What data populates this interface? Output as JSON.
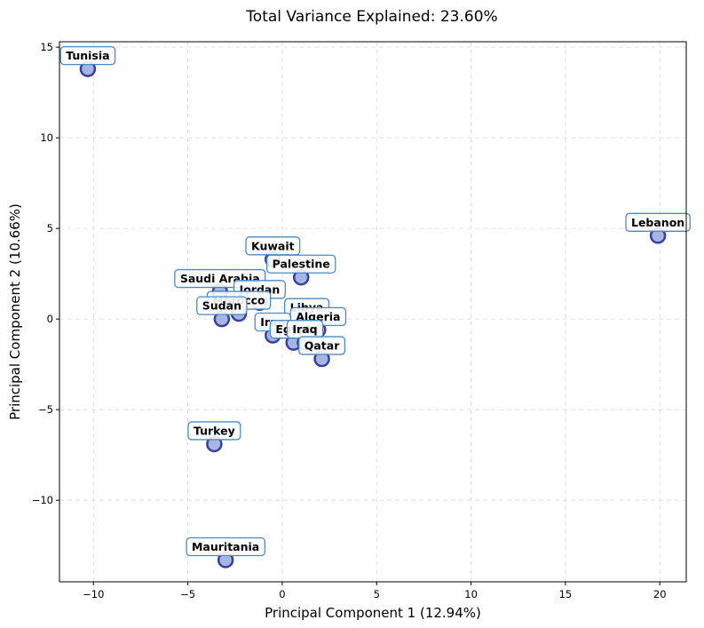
{
  "chart_data": {
    "type": "scatter",
    "title": "Total Variance Explained: 23.60%",
    "xlabel": "Principal Component 1 (12.94%)",
    "ylabel": "Principal Component 2 (10.66%)",
    "xlim": [
      -11.8,
      21.4
    ],
    "ylim": [
      -14.5,
      15.3
    ],
    "xticks": [
      -10,
      -5,
      0,
      5,
      10,
      15,
      20
    ],
    "yticks": [
      -10,
      -5,
      0,
      5,
      10,
      15
    ],
    "grid": true,
    "marker_color": "#9aaede",
    "marker_edge_color": "#3a3fa0",
    "label_border_color": "#4a8ac4",
    "points": [
      {
        "name": "Tunisia",
        "x": -10.3,
        "y": 13.8
      },
      {
        "name": "Lebanon",
        "x": 19.9,
        "y": 4.6
      },
      {
        "name": "Kuwait",
        "x": -0.5,
        "y": 3.3
      },
      {
        "name": "Palestine",
        "x": 1.0,
        "y": 2.3
      },
      {
        "name": "Saudi Arabia",
        "x": -3.3,
        "y": 1.5
      },
      {
        "name": "Jordan",
        "x": -1.2,
        "y": 0.9
      },
      {
        "name": "Morocco",
        "x": -2.3,
        "y": 0.3
      },
      {
        "name": "Sudan",
        "x": -3.2,
        "y": 0.0
      },
      {
        "name": "Libya",
        "x": 1.3,
        "y": -0.1
      },
      {
        "name": "Algeria",
        "x": 1.9,
        "y": -0.6
      },
      {
        "name": "Iran",
        "x": -0.5,
        "y": -0.9
      },
      {
        "name": "Egypt",
        "x": 0.6,
        "y": -1.3
      },
      {
        "name": "Iraq",
        "x": 1.2,
        "y": -1.3
      },
      {
        "name": "Qatar",
        "x": 2.1,
        "y": -2.2
      },
      {
        "name": "Turkey",
        "x": -3.6,
        "y": -6.9
      },
      {
        "name": "Mauritania",
        "x": -3.0,
        "y": -13.3
      }
    ]
  }
}
